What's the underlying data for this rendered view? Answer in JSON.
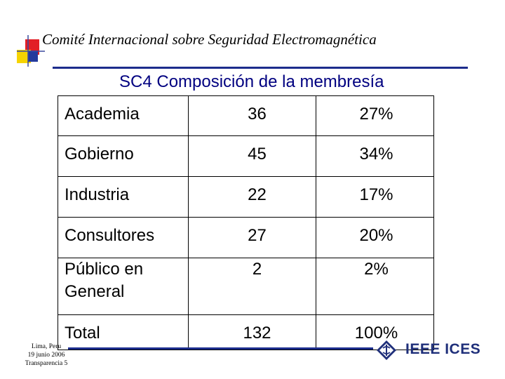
{
  "header": {
    "title": "Comité Internacional sobre Seguridad Electromagnética"
  },
  "slide": {
    "title": "SC4 Composición de la membresía"
  },
  "table": {
    "rows": [
      {
        "label": "Academia",
        "count": "36",
        "percent": "27%"
      },
      {
        "label": "Gobierno",
        "count": "45",
        "percent": "34%"
      },
      {
        "label": "Industria",
        "count": "22",
        "percent": "17%"
      },
      {
        "label": "Consultores",
        "count": "27",
        "percent": "20%"
      },
      {
        "label_line1": "Público en",
        "label_line2": "General",
        "count": "2",
        "percent": "2%"
      },
      {
        "label": "Total",
        "count": "132",
        "percent": "100%"
      }
    ]
  },
  "footer": {
    "location": "Lima, Peru",
    "date": "19 junio 2006",
    "slide_ref": "Transparencia 5",
    "org": "IEEE ICES"
  },
  "colors": {
    "title_blue": "#000080",
    "rule_blue": "#1c2c8c",
    "logo_red": "#e21f26",
    "logo_yellow": "#f6d400",
    "logo_blue": "#243a9c",
    "ieee_blue": "#1f2f7a"
  },
  "icons": {
    "logo": "stacked-squares-logo",
    "ieee": "ieee-diamond-logo"
  }
}
